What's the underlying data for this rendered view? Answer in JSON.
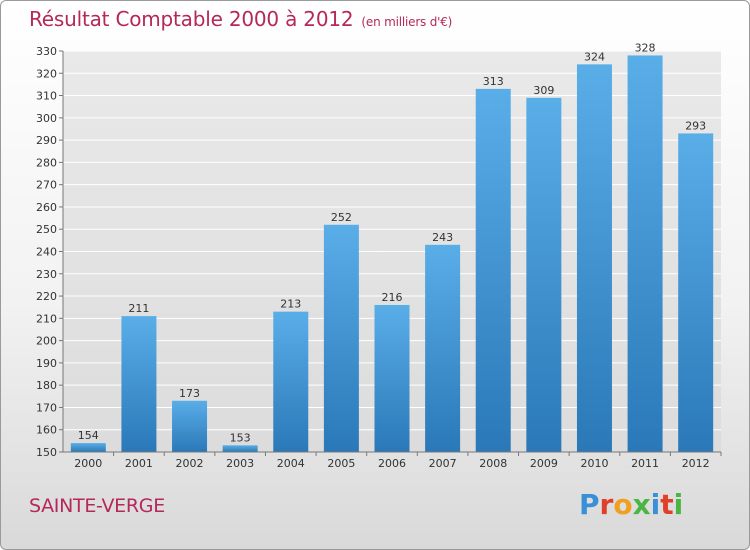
{
  "header": {
    "title": "Résultat Comptable 2000 à 2012",
    "subtitle": "(en milliers d'€)"
  },
  "footer": {
    "place": "SAINTE-VERGE",
    "brand": "Proxiti",
    "brand_colors": [
      "#3a8fd6",
      "#e0402a",
      "#f0a020",
      "#4bb543",
      "#3a8fd6",
      "#e0402a",
      "#4bb543"
    ]
  },
  "colors": {
    "accent": "#b5285a",
    "bar_top": "#5aaee8",
    "bar_bottom": "#2a78b8"
  },
  "chart_data": {
    "type": "bar",
    "categories": [
      "2000",
      "2001",
      "2002",
      "2003",
      "2004",
      "2005",
      "2006",
      "2007",
      "2008",
      "2009",
      "2010",
      "2011",
      "2012"
    ],
    "values": [
      154,
      211,
      173,
      153,
      213,
      252,
      216,
      243,
      313,
      309,
      324,
      328,
      293
    ],
    "title": "Résultat Comptable 2000 à 2012",
    "subtitle": "(en milliers d'€)",
    "xlabel": "",
    "ylabel": "",
    "ylim": [
      150,
      330
    ],
    "yticks": [
      150,
      160,
      170,
      180,
      190,
      200,
      210,
      220,
      230,
      240,
      250,
      260,
      270,
      280,
      290,
      300,
      310,
      320,
      330
    ],
    "grid": true,
    "data_labels": true
  }
}
